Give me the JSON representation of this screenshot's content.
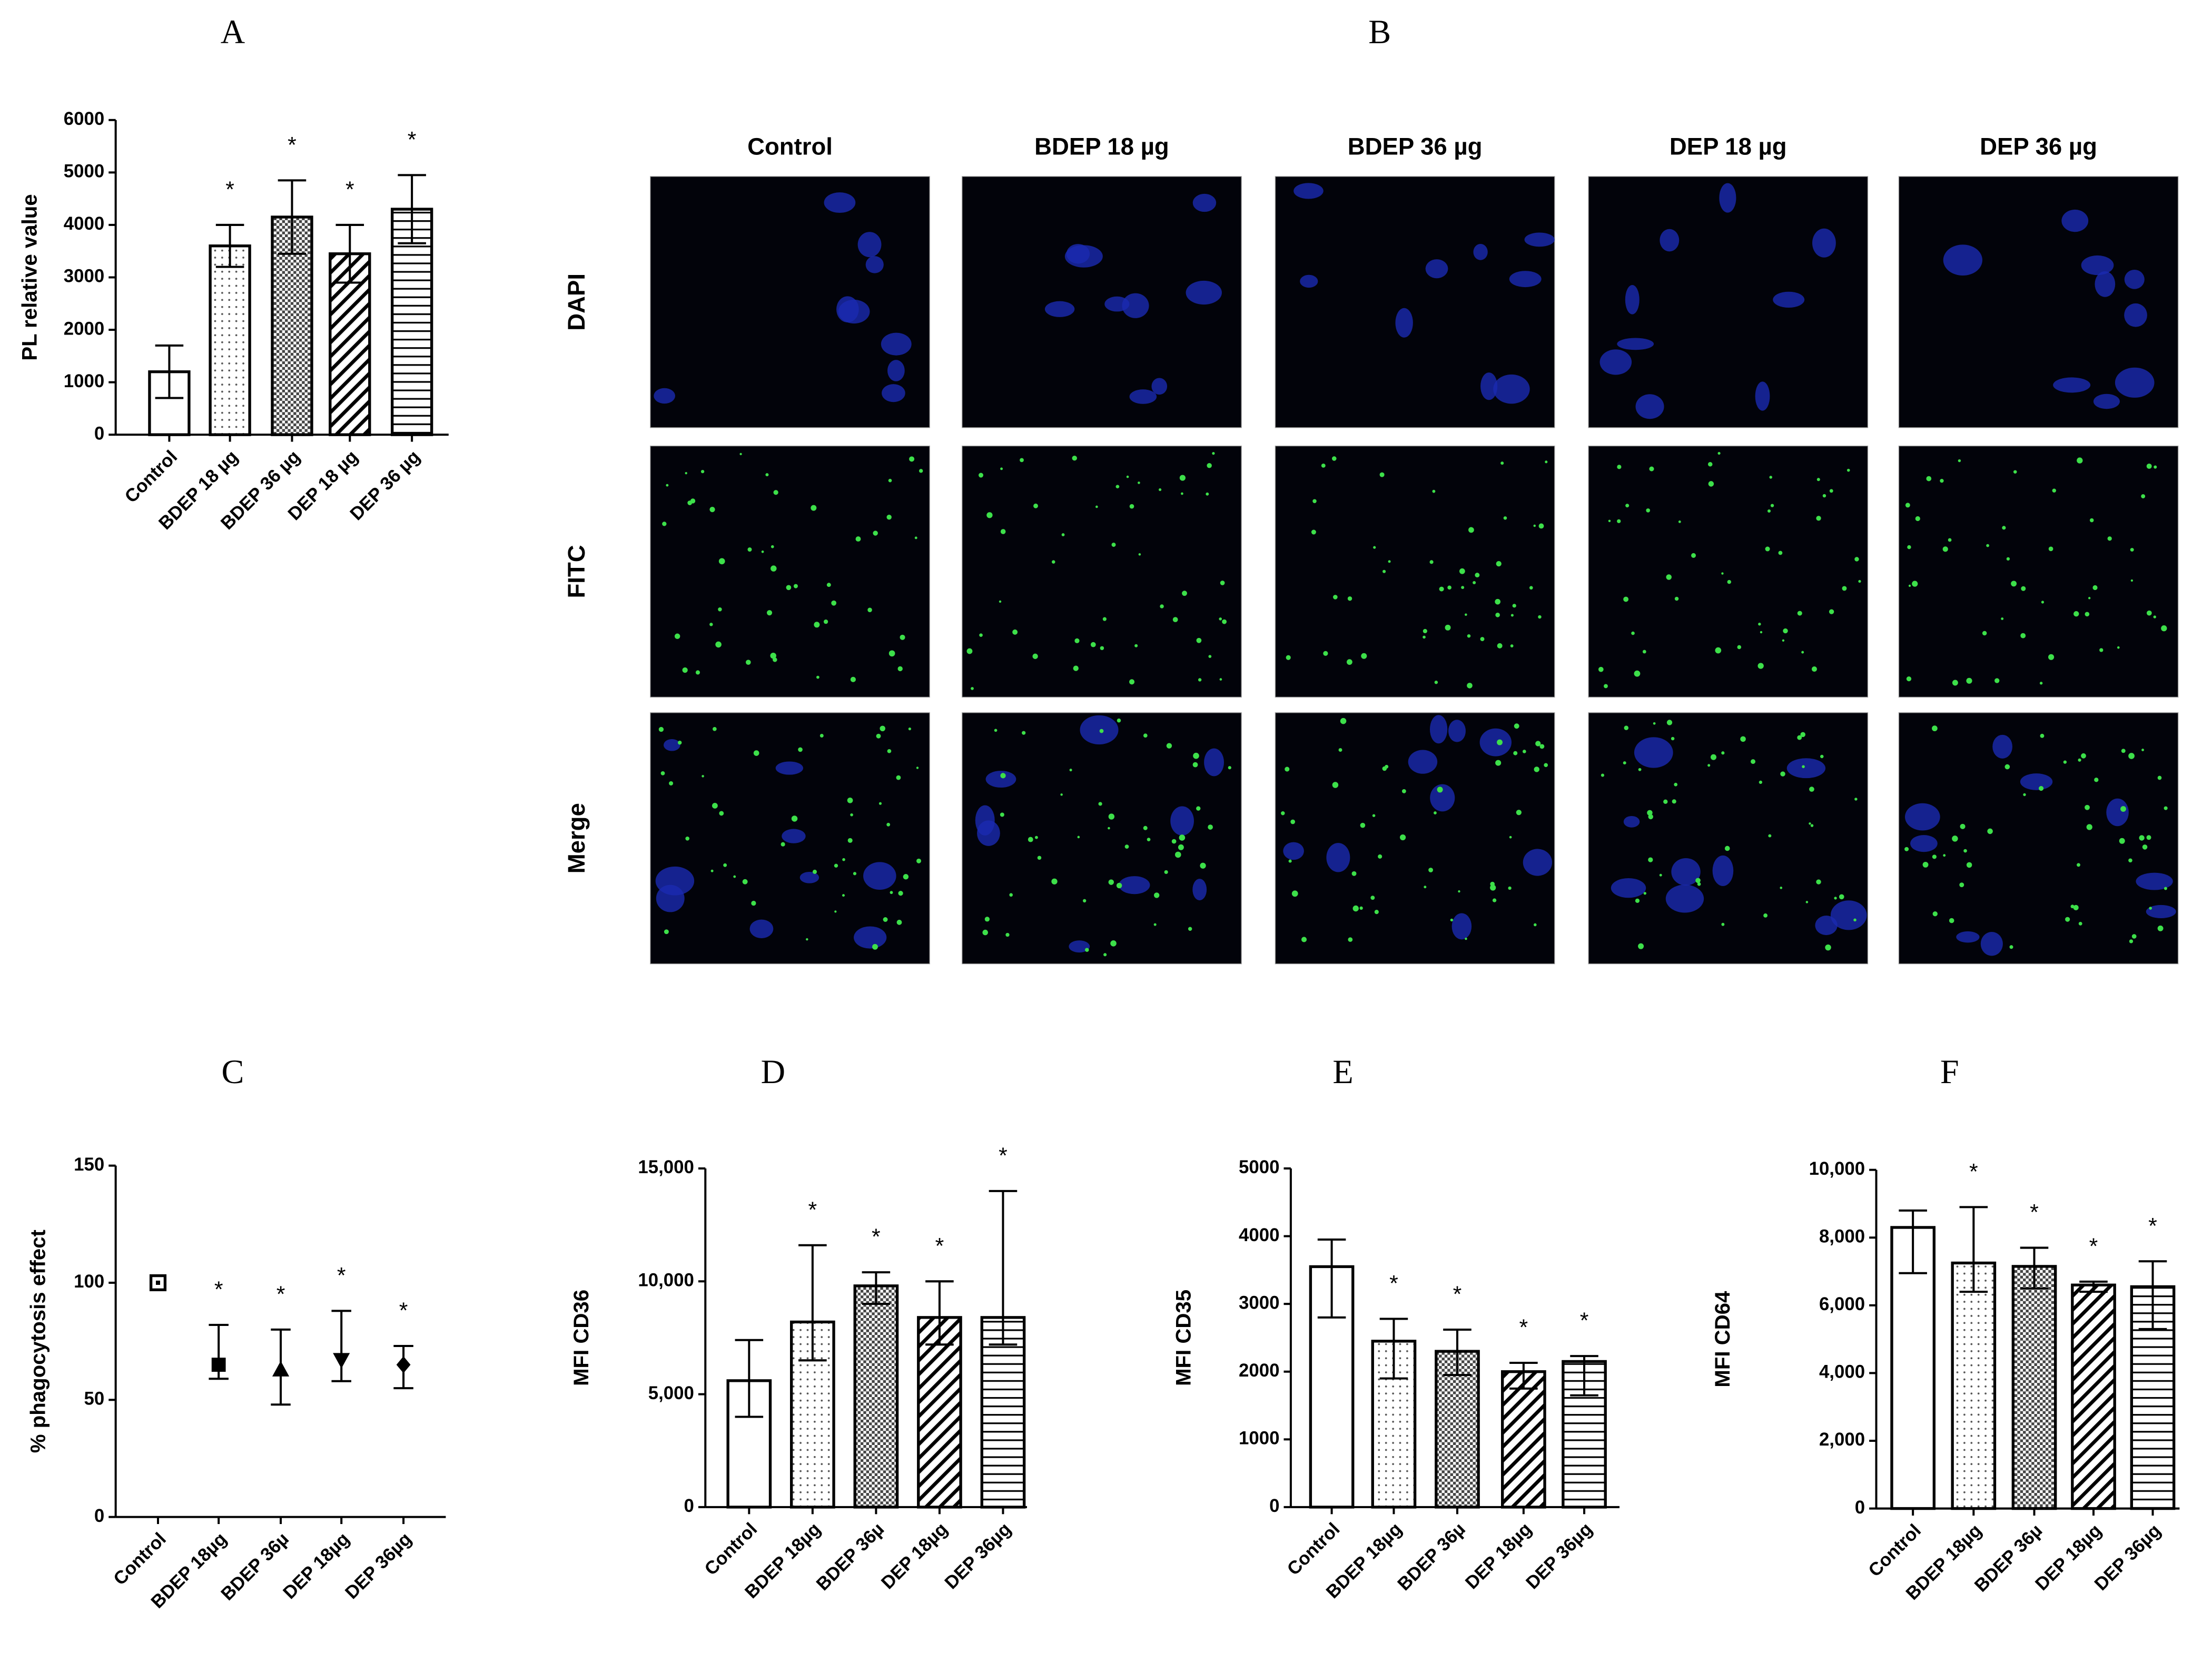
{
  "chart_data": [
    {
      "type": "bar",
      "label": "A",
      "y_label": "PL relative value",
      "categories": [
        "Control",
        "BDEP 18 µg",
        "BDEP 36 µg",
        "DEP 18 µg",
        "DEP 36 µg"
      ],
      "values": [
        1200,
        3600,
        4150,
        3450,
        4300
      ],
      "errors": [
        500,
        400,
        700,
        550,
        650
      ],
      "significance": [
        null,
        "*",
        "*",
        "*",
        "*"
      ],
      "ylim": [
        0,
        6000
      ],
      "yticks": [
        0,
        1000,
        2000,
        3000,
        4000,
        5000,
        6000
      ]
    },
    {
      "type": "image_grid",
      "label": "B",
      "columns": [
        "Control",
        "BDEP 18 µg",
        "BDEP 36 µg",
        "DEP 18 µg",
        "DEP 36 µg"
      ],
      "rows": [
        "DAPI",
        "FITC",
        "Merge"
      ]
    },
    {
      "type": "scatter",
      "label": "C",
      "y_label": "% phagocytosis effect",
      "categories": [
        "Control",
        "BDEP 18µg",
        "BDEP 36µ",
        "DEP 18µg",
        "DEP 36µg"
      ],
      "values": [
        100,
        65,
        63,
        67,
        65
      ],
      "errors_low": [
        null,
        6,
        15,
        9,
        10
      ],
      "errors_high": [
        null,
        17,
        17,
        21,
        8
      ],
      "significance": [
        null,
        "*",
        "*",
        "*",
        "*"
      ],
      "ylim": [
        0,
        150
      ],
      "yticks": [
        0,
        50,
        100,
        150
      ]
    },
    {
      "type": "bar",
      "label": "D",
      "y_label": "MFI CD36",
      "categories": [
        "Control",
        "BDEP 18µg",
        "BDEP 36µ",
        "DEP 18µg",
        "DEP 36µg"
      ],
      "values": [
        5600,
        8200,
        9800,
        8400,
        8400
      ],
      "errors_low": [
        1600,
        1700,
        800,
        1200,
        1200
      ],
      "errors_high": [
        1800,
        3400,
        600,
        1600,
        5600
      ],
      "significance": [
        null,
        "*",
        "*",
        "*",
        "*"
      ],
      "ylim": [
        0,
        15000
      ],
      "yticks": [
        0,
        {
          "value": 5000,
          "label": "5,000"
        },
        {
          "value": 10000,
          "label": "10,000"
        },
        {
          "value": 15000,
          "label": "15,000"
        }
      ]
    },
    {
      "type": "bar",
      "label": "E",
      "y_label": "MFI CD35",
      "categories": [
        "Control",
        "BDEP 18µg",
        "BDEP 36µ",
        "DEP 18µg",
        "DEP 36µg"
      ],
      "values": [
        3550,
        2450,
        2300,
        2000,
        2150
      ],
      "errors_low": [
        750,
        550,
        350,
        250,
        500
      ],
      "errors_high": [
        400,
        330,
        320,
        130,
        80
      ],
      "significance": [
        null,
        "*",
        "*",
        "*",
        "*"
      ],
      "ylim": [
        0,
        5000
      ],
      "yticks": [
        0,
        1000,
        2000,
        3000,
        4000,
        5000
      ]
    },
    {
      "type": "bar",
      "label": "F",
      "y_label": "MFI CD64",
      "categories": [
        "Control",
        "BDEP 18µg",
        "BDEP 36µ",
        "DEP 18µg",
        "DEP 36µg"
      ],
      "values": [
        8300,
        7250,
        7150,
        6600,
        6550
      ],
      "errors_low": [
        1350,
        850,
        650,
        200,
        1250
      ],
      "errors_high": [
        500,
        1650,
        550,
        100,
        750
      ],
      "significance": [
        null,
        "*",
        "*",
        "*",
        "*"
      ],
      "ylim": [
        0,
        10000
      ],
      "yticks": [
        0,
        {
          "value": 2000,
          "label": "2,000"
        },
        {
          "value": 4000,
          "label": "4,000"
        },
        {
          "value": 6000,
          "label": "6,000"
        },
        {
          "value": 8000,
          "label": "8,000"
        },
        {
          "value": 10000,
          "label": "10,000"
        }
      ]
    }
  ]
}
